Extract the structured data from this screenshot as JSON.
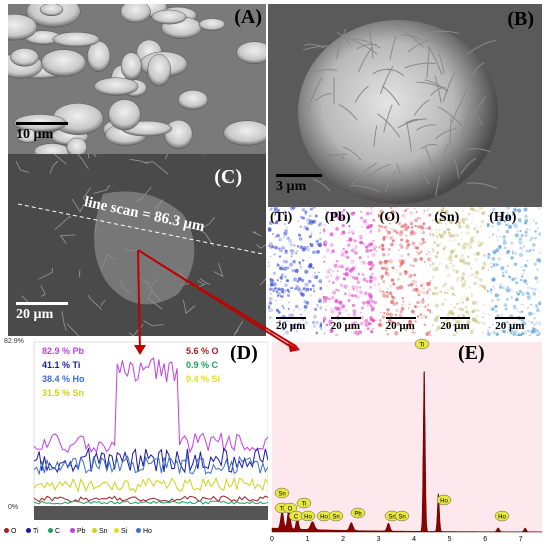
{
  "panel_a": {
    "label": "(A)",
    "scale_bar": "10 µm"
  },
  "panel_b": {
    "label": "(B)",
    "scale_bar": "3 µm"
  },
  "panel_c": {
    "label": "(C)",
    "scale_bar": "20 µm",
    "annotation": "line scan = 86.3 µm"
  },
  "maps": [
    {
      "label": "(Ti)",
      "scale_bar": "20 µm",
      "color": "#3a4fd6"
    },
    {
      "label": "(Pb)",
      "scale_bar": "20 µm",
      "color": "#e040c8"
    },
    {
      "label": "(O)",
      "scale_bar": "20 µm",
      "color": "#e06060"
    },
    {
      "label": "(Sn)",
      "scale_bar": "20 µm",
      "color": "#c8c080"
    },
    {
      "label": "(Ho)",
      "scale_bar": "20 µm",
      "color": "#5aa0d8"
    }
  ],
  "panel_d": {
    "label": "(D)",
    "y_top": "82.9%",
    "y_bottom": "0%",
    "percent_labels": [
      {
        "text": "82.9 % Pb",
        "color": "#c040e0"
      },
      {
        "text": "41.1 % Ti",
        "color": "#1a1aa0"
      },
      {
        "text": "38.4 % Ho",
        "color": "#3a6fd0"
      },
      {
        "text": "31.5 % Sn",
        "color": "#d0d020"
      },
      {
        "text": "5.6 % O",
        "color": "#a02020"
      },
      {
        "text": "0.9 % C",
        "color": "#20a060"
      },
      {
        "text": "0.4 % Si",
        "color": "#e0e020"
      }
    ],
    "legend": [
      {
        "name": "O",
        "color": "#a02020"
      },
      {
        "name": "Ti",
        "color": "#1a1aa0"
      },
      {
        "name": "C",
        "color": "#20a060"
      },
      {
        "name": "Pb",
        "color": "#c040e0"
      },
      {
        "name": "Sn",
        "color": "#d0d020"
      },
      {
        "name": "Si",
        "color": "#e0e020"
      },
      {
        "name": "Ho",
        "color": "#3a6fd0"
      }
    ]
  },
  "panel_e": {
    "label": "(E)",
    "x_ticks": [
      "0",
      "1",
      "2",
      "3",
      "4",
      "5",
      "6",
      "7"
    ],
    "peak_tags": [
      "Ti",
      "Sn",
      "O",
      "C",
      "Ti",
      "Ho",
      "Ho",
      "Sn",
      "Pb",
      "Sn",
      "Sn",
      "Ti",
      "Ho",
      "Ho"
    ]
  }
}
